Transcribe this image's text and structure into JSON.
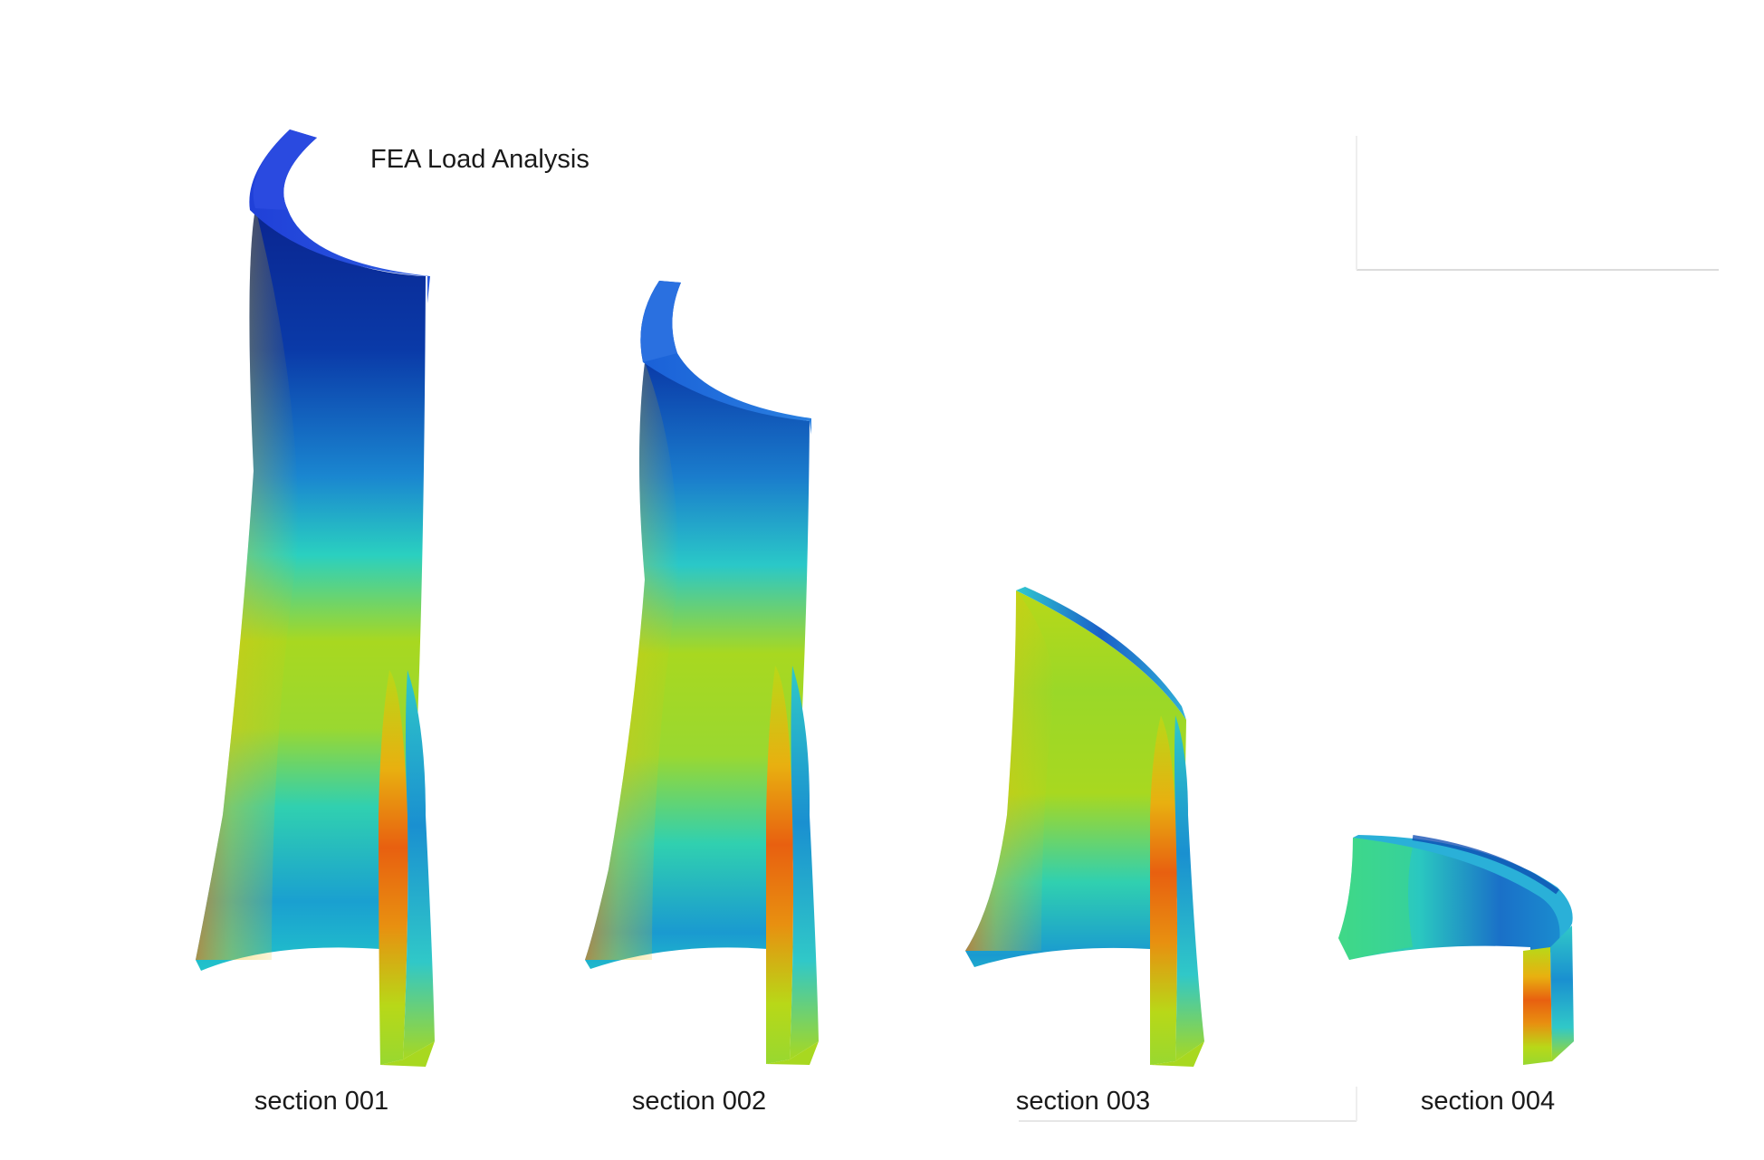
{
  "title": "FEA Load Analysis",
  "sections": [
    {
      "label": "section 001"
    },
    {
      "label": "section 002"
    },
    {
      "label": "section 003"
    },
    {
      "label": "section 004"
    }
  ],
  "colors": {
    "background": "#ffffff",
    "stress_low": "#0a2a9a",
    "stress_mid_low": "#1aa8d8",
    "stress_mid": "#22d8b8",
    "stress_mid_high": "#9ad820",
    "stress_high": "#e8c010",
    "stress_peak": "#d81808"
  }
}
